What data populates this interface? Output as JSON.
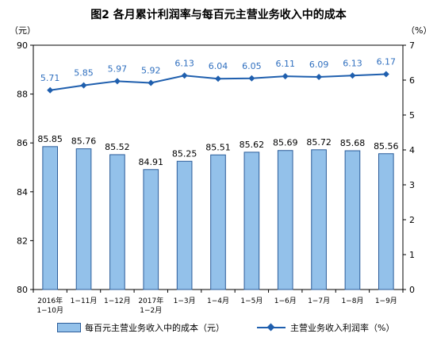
{
  "title": "图2  各月累计利润率与每百元主营业务收入中的成本",
  "left_unit": "（元）",
  "right_unit": "（%）",
  "chart_data": {
    "type": "bar+line",
    "categories": [
      [
        "2016年",
        "1−10月"
      ],
      [
        "1−11月"
      ],
      [
        "1−12月"
      ],
      [
        "2017年",
        "1−2月"
      ],
      [
        "1−3月"
      ],
      [
        "1−4月"
      ],
      [
        "1−5月"
      ],
      [
        "1−6月"
      ],
      [
        "1−7月"
      ],
      [
        "1−8月"
      ],
      [
        "1−9月"
      ]
    ],
    "series": [
      {
        "name": "每百元主营业务收入中的成本（元）",
        "type": "bar",
        "axis": "left",
        "color": "#93c1ea",
        "values": [
          85.85,
          85.76,
          85.52,
          84.91,
          85.25,
          85.51,
          85.62,
          85.69,
          85.72,
          85.68,
          85.56
        ],
        "labels": [
          "85.85",
          "85.76",
          "85.52",
          "84.91",
          "85.25",
          "85.51",
          "85.62",
          "85.69",
          "85.72",
          "85.68",
          "85.56"
        ]
      },
      {
        "name": "主营业务收入利润率（%）",
        "type": "line",
        "axis": "right",
        "color": "#1f5fae",
        "values": [
          5.71,
          5.85,
          5.97,
          5.92,
          6.13,
          6.04,
          6.05,
          6.11,
          6.09,
          6.13,
          6.17
        ],
        "labels": [
          "5.71",
          "5.85",
          "5.97",
          "5.92",
          "6.13",
          "6.04",
          "6.05",
          "6.11",
          "6.09",
          "6.13",
          "6.17"
        ]
      }
    ],
    "y_left": {
      "range": [
        80,
        90
      ],
      "ticks": [
        "80",
        "82",
        "84",
        "86",
        "88",
        "90"
      ]
    },
    "y_right": {
      "range": [
        0,
        7
      ],
      "ticks": [
        "0",
        "1",
        "2",
        "3",
        "4",
        "5",
        "6",
        "7"
      ]
    },
    "grid": false,
    "legend_position": "bottom"
  }
}
